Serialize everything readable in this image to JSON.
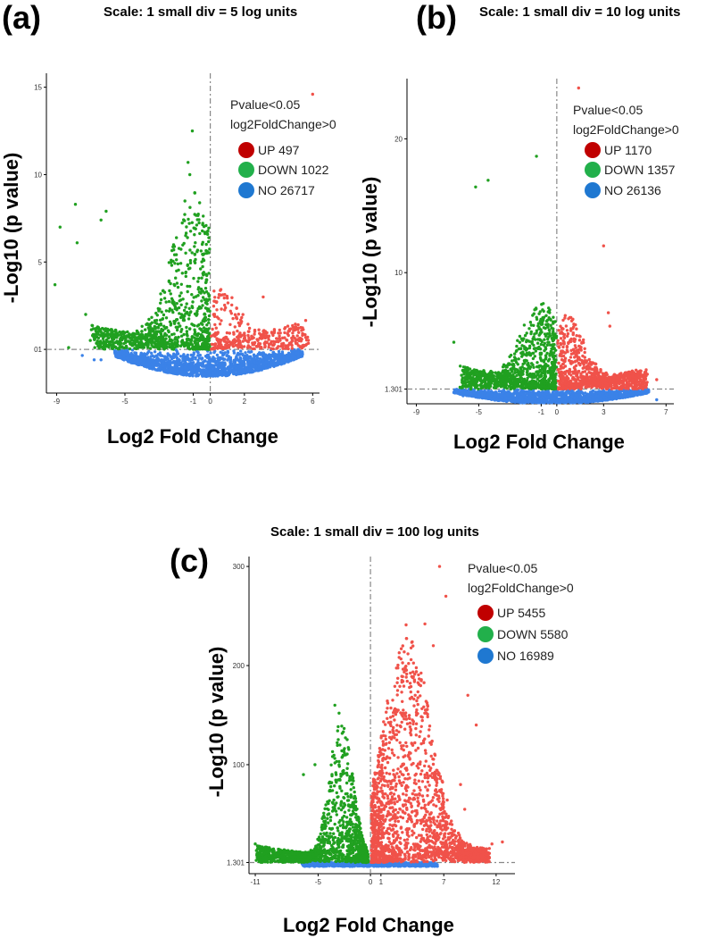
{
  "colors": {
    "up": "#f0524a",
    "down": "#20a020",
    "no": "#3b82e8",
    "leg_up": "#c00000",
    "leg_down": "#22b04b",
    "leg_no": "#1f78d1"
  },
  "chart_data": [
    {
      "type": "scatter",
      "panel_label": "(a)",
      "title": "Scale: 1 small div = 5 log units",
      "xlabel": "Log2 Fold Change",
      "ylabel": "-Log10 (p value)",
      "xlim": [
        -9.6,
        6.4
      ],
      "ylim": [
        -2.5,
        15.8
      ],
      "xticks": [
        -9,
        -5,
        -1,
        0,
        2,
        6
      ],
      "xtick_labels": [
        "-9",
        "-5",
        "-1",
        "0",
        "2",
        "6"
      ],
      "yticks": [
        0,
        5,
        10,
        15
      ],
      "ytick_labels": [
        "01",
        "5",
        "10",
        "15"
      ],
      "hline": 0,
      "vline": 0,
      "legend_title": [
        "Pvalue<0.05",
        "log2FoldChange>0"
      ],
      "legend": [
        {
          "key": "up",
          "label": "UP 497"
        },
        {
          "key": "down",
          "label": "DOWN 1022"
        },
        {
          "key": "no",
          "label": "NO 26717"
        }
      ],
      "highlights": [
        {
          "g": "up",
          "x": 6.0,
          "y": 14.6
        },
        {
          "g": "down",
          "x": -1.05,
          "y": 12.5
        },
        {
          "g": "down",
          "x": -1.3,
          "y": 10.7
        },
        {
          "g": "down",
          "x": -1.2,
          "y": 10.0
        },
        {
          "g": "down",
          "x": -7.9,
          "y": 8.3
        },
        {
          "g": "down",
          "x": -6.1,
          "y": 7.9
        },
        {
          "g": "down",
          "x": -8.8,
          "y": 7.0
        },
        {
          "g": "down",
          "x": -6.4,
          "y": 7.4
        },
        {
          "g": "down",
          "x": -7.8,
          "y": 6.1
        },
        {
          "g": "down",
          "x": -9.1,
          "y": 3.7
        },
        {
          "g": "down",
          "x": -7.3,
          "y": 2.0
        },
        {
          "g": "down",
          "x": -8.3,
          "y": 0.1
        },
        {
          "g": "up",
          "x": 3.1,
          "y": 3.0
        },
        {
          "g": "up",
          "x": 5.4,
          "y": 0.8
        },
        {
          "g": "no",
          "x": -7.5,
          "y": -0.35
        },
        {
          "g": "no",
          "x": -6.8,
          "y": -0.6
        },
        {
          "g": "no",
          "x": -6.4,
          "y": -0.6
        }
      ],
      "gen": {
        "seed": 11,
        "up": 380,
        "down": 1000,
        "no": 1700,
        "down_xmin": -6.8,
        "up_xmax": 5.6,
        "spread_down": 0.2,
        "spread_up": 0.3,
        "no_xmin": -5.6,
        "no_xmax": 5.4,
        "no_depth": 1.55,
        "down_max": 9.0,
        "up_max": 3.5,
        "scale": 2.5
      }
    },
    {
      "type": "scatter",
      "panel_label": "(b)",
      "title": "Scale: 1 small div = 10 log units",
      "xlabel": "Log2 Fold Change",
      "ylabel": "-Log10 (p value)",
      "xlim": [
        -9.6,
        7.5
      ],
      "ylim": [
        0.2,
        24.5
      ],
      "xticks": [
        -9,
        -5,
        -1,
        0,
        3,
        7
      ],
      "xtick_labels": [
        "-9",
        "-5",
        "-1",
        "0",
        "3",
        "7"
      ],
      "yticks": [
        1.301,
        10,
        20
      ],
      "ytick_labels": [
        "1.301",
        "10",
        "20"
      ],
      "hline": 1.301,
      "vline": 0,
      "legend_title": [
        "Pvalue<0.05",
        "log2FoldChange>0"
      ],
      "legend": [
        {
          "key": "up",
          "label": "UP 1170"
        },
        {
          "key": "down",
          "label": "DOWN 1357"
        },
        {
          "key": "no",
          "label": "NO 26136"
        }
      ],
      "highlights": [
        {
          "g": "up",
          "x": 1.4,
          "y": 23.8
        },
        {
          "g": "down",
          "x": -1.3,
          "y": 18.7
        },
        {
          "g": "down",
          "x": -4.4,
          "y": 16.9
        },
        {
          "g": "down",
          "x": -5.2,
          "y": 16.4
        },
        {
          "g": "up",
          "x": 3.0,
          "y": 12.0
        },
        {
          "g": "up",
          "x": 3.3,
          "y": 7.0
        },
        {
          "g": "up",
          "x": 3.4,
          "y": 6.0
        },
        {
          "g": "down",
          "x": -6.6,
          "y": 4.8
        },
        {
          "g": "down",
          "x": -5.7,
          "y": 2.5
        },
        {
          "g": "up",
          "x": 6.4,
          "y": 2.0
        },
        {
          "g": "no",
          "x": -6.1,
          "y": 0.9
        },
        {
          "g": "no",
          "x": -6.0,
          "y": 0.8
        },
        {
          "g": "no",
          "x": 6.4,
          "y": 0.5
        },
        {
          "g": "no",
          "x": 5.6,
          "y": 1.0
        }
      ],
      "gen": {
        "seed": 23,
        "up": 900,
        "down": 1050,
        "no": 1700,
        "down_xmin": -6.0,
        "up_xmax": 5.6,
        "spread_down": 0.28,
        "spread_up": 0.28,
        "no_xmin": -6.6,
        "no_xmax": 5.9,
        "no_depth": 1.1,
        "down_max": 6.5,
        "up_max": 5.5,
        "scale": 2.4
      }
    },
    {
      "type": "scatter",
      "panel_label": "(c)",
      "title": "Scale: 1 small div = 100 log units",
      "xlabel": "Log2 Fold Change",
      "ylabel": "-Log10 (p value)",
      "xlim": [
        -11.6,
        13.8
      ],
      "ylim": [
        -10,
        310
      ],
      "xticks": [
        -11,
        -5,
        0,
        1,
        7,
        12
      ],
      "xtick_labels": [
        "-11",
        "-5",
        "0",
        "1",
        "7",
        "12"
      ],
      "yticks": [
        1.301,
        100,
        200,
        300
      ],
      "ytick_labels": [
        "1.301",
        "100",
        "200",
        "300"
      ],
      "hline": 1.301,
      "vline": 0,
      "legend_title": [
        "Pvalue<0.05",
        "log2FoldChange>0"
      ],
      "legend": [
        {
          "key": "up",
          "label": "UP 5455"
        },
        {
          "key": "down",
          "label": "DOWN 5580"
        },
        {
          "key": "no",
          "label": "NO 16989"
        }
      ],
      "highlights": [
        {
          "g": "up",
          "x": 6.6,
          "y": 300
        },
        {
          "g": "up",
          "x": 7.2,
          "y": 270
        },
        {
          "g": "up",
          "x": 3.4,
          "y": 241
        },
        {
          "g": "up",
          "x": 5.2,
          "y": 242
        },
        {
          "g": "up",
          "x": 6.0,
          "y": 220
        },
        {
          "g": "up",
          "x": 9.3,
          "y": 170
        },
        {
          "g": "up",
          "x": 10.1,
          "y": 140
        },
        {
          "g": "up",
          "x": 8.6,
          "y": 80
        },
        {
          "g": "up",
          "x": 9.0,
          "y": 55
        },
        {
          "g": "up",
          "x": 11.6,
          "y": 20
        },
        {
          "g": "up",
          "x": 12.6,
          "y": 22
        },
        {
          "g": "down",
          "x": -3.4,
          "y": 160
        },
        {
          "g": "down",
          "x": -3.0,
          "y": 152
        },
        {
          "g": "down",
          "x": -5.3,
          "y": 100
        },
        {
          "g": "down",
          "x": -6.4,
          "y": 90
        },
        {
          "g": "down",
          "x": -11.0,
          "y": 20
        },
        {
          "g": "down",
          "x": -8.6,
          "y": 14
        }
      ],
      "gen": {
        "seed": 37,
        "up": 1900,
        "down": 1500,
        "no": 800,
        "down_xmin": -10.5,
        "up_xmax": 11.2,
        "spread_down": 0.26,
        "spread_up": 0.26,
        "no_xmin": -6.6,
        "no_xmax": 6.4,
        "no_depth": 2.0,
        "down_max": 140,
        "up_max": 230,
        "scale": 1.8
      }
    }
  ]
}
